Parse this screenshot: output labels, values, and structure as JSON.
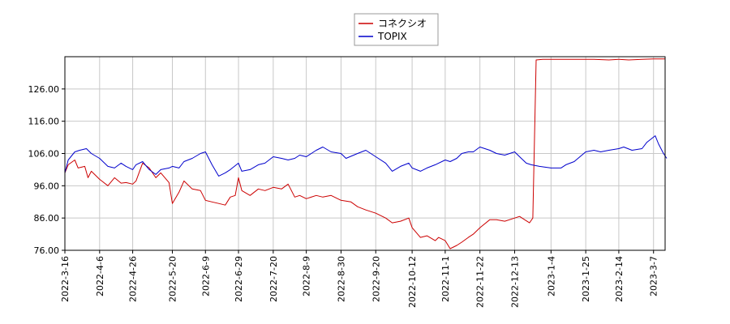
{
  "chart_data": {
    "type": "line",
    "title": "",
    "xlabel": "",
    "ylabel": "",
    "legend_position": "top-center",
    "grid": true,
    "ylim": [
      76.0,
      136.0
    ],
    "y_ticks": [
      "76.00",
      "86.00",
      "96.00",
      "106.00",
      "116.00",
      "126.00"
    ],
    "x_ticks": [
      "2022-3-16",
      "2022-4-6",
      "2022-4-26",
      "2022-5-20",
      "2022-6-9",
      "2022-6-29",
      "2022-7-20",
      "2022-8-9",
      "2022-8-30",
      "2022-9-20",
      "2022-10-12",
      "2022-11-1",
      "2022-11-22",
      "2022-12-13",
      "2023-1-4",
      "2023-1-25",
      "2023-2-14",
      "2023-3-7"
    ],
    "series": [
      {
        "name": "コネクシオ",
        "color": "#cc0000",
        "points": [
          [
            "2022-3-16",
            100.0
          ],
          [
            "2022-3-18",
            102.5
          ],
          [
            "2022-3-22",
            104.0
          ],
          [
            "2022-3-24",
            101.5
          ],
          [
            "2022-3-28",
            102.0
          ],
          [
            "2022-3-30",
            98.5
          ],
          [
            "2022-4-1",
            100.5
          ],
          [
            "2022-4-6",
            98.0
          ],
          [
            "2022-4-11",
            96.0
          ],
          [
            "2022-4-15",
            98.5
          ],
          [
            "2022-4-19",
            96.8
          ],
          [
            "2022-4-22",
            97.0
          ],
          [
            "2022-4-26",
            96.5
          ],
          [
            "2022-4-28",
            97.5
          ],
          [
            "2022-5-2",
            103.0
          ],
          [
            "2022-5-6",
            101.5
          ],
          [
            "2022-5-10",
            98.5
          ],
          [
            "2022-5-13",
            100.0
          ],
          [
            "2022-5-18",
            97.0
          ],
          [
            "2022-5-20",
            90.5
          ],
          [
            "2022-5-24",
            94.0
          ],
          [
            "2022-5-27",
            97.5
          ],
          [
            "2022-6-1",
            95.0
          ],
          [
            "2022-6-6",
            94.5
          ],
          [
            "2022-6-9",
            91.5
          ],
          [
            "2022-6-13",
            91.0
          ],
          [
            "2022-6-17",
            90.5
          ],
          [
            "2022-6-21",
            90.0
          ],
          [
            "2022-6-24",
            92.5
          ],
          [
            "2022-6-27",
            93.0
          ],
          [
            "2022-6-29",
            98.5
          ],
          [
            "2022-7-1",
            94.5
          ],
          [
            "2022-7-6",
            93.0
          ],
          [
            "2022-7-11",
            95.0
          ],
          [
            "2022-7-15",
            94.5
          ],
          [
            "2022-7-20",
            95.5
          ],
          [
            "2022-7-25",
            95.0
          ],
          [
            "2022-7-29",
            96.5
          ],
          [
            "2022-8-2",
            92.5
          ],
          [
            "2022-8-5",
            93.0
          ],
          [
            "2022-8-9",
            92.0
          ],
          [
            "2022-8-15",
            93.0
          ],
          [
            "2022-8-19",
            92.5
          ],
          [
            "2022-8-24",
            93.0
          ],
          [
            "2022-8-30",
            91.5
          ],
          [
            "2022-9-5",
            91.0
          ],
          [
            "2022-9-9",
            89.5
          ],
          [
            "2022-9-14",
            88.5
          ],
          [
            "2022-9-20",
            87.5
          ],
          [
            "2022-9-26",
            86.0
          ],
          [
            "2022-9-30",
            84.5
          ],
          [
            "2022-10-5",
            85.0
          ],
          [
            "2022-10-10",
            86.0
          ],
          [
            "2022-10-12",
            83.0
          ],
          [
            "2022-10-17",
            80.0
          ],
          [
            "2022-10-21",
            80.5
          ],
          [
            "2022-10-26",
            79.0
          ],
          [
            "2022-10-28",
            80.0
          ],
          [
            "2022-11-1",
            79.0
          ],
          [
            "2022-11-4",
            76.5
          ],
          [
            "2022-11-8",
            77.5
          ],
          [
            "2022-11-11",
            78.5
          ],
          [
            "2022-11-15",
            80.0
          ],
          [
            "2022-11-18",
            81.0
          ],
          [
            "2022-11-22",
            83.0
          ],
          [
            "2022-11-28",
            85.5
          ],
          [
            "2022-12-2",
            85.5
          ],
          [
            "2022-12-7",
            85.0
          ],
          [
            "2022-12-13",
            86.0
          ],
          [
            "2022-12-16",
            86.5
          ],
          [
            "2022-12-19",
            85.5
          ],
          [
            "2022-12-22",
            84.5
          ],
          [
            "2022-12-24",
            86.0
          ],
          [
            "2022-12-26",
            135.0
          ],
          [
            "2022-12-30",
            135.2
          ],
          [
            "2023-1-10",
            135.2
          ],
          [
            "2023-1-20",
            135.2
          ],
          [
            "2023-1-30",
            135.2
          ],
          [
            "2023-2-8",
            135.0
          ],
          [
            "2023-2-14",
            135.2
          ],
          [
            "2023-2-20",
            135.0
          ],
          [
            "2023-2-28",
            135.2
          ],
          [
            "2023-3-7",
            135.3
          ],
          [
            "2023-3-14",
            135.3
          ]
        ]
      },
      {
        "name": "TOPIX",
        "color": "#0000cc",
        "points": [
          [
            "2022-3-16",
            100.0
          ],
          [
            "2022-3-18",
            104.0
          ],
          [
            "2022-3-22",
            106.5
          ],
          [
            "2022-3-25",
            107.0
          ],
          [
            "2022-3-29",
            107.5
          ],
          [
            "2022-4-1",
            106.0
          ],
          [
            "2022-4-6",
            104.5
          ],
          [
            "2022-4-11",
            102.0
          ],
          [
            "2022-4-15",
            101.5
          ],
          [
            "2022-4-19",
            103.0
          ],
          [
            "2022-4-22",
            102.0
          ],
          [
            "2022-4-26",
            101.0
          ],
          [
            "2022-4-28",
            102.5
          ],
          [
            "2022-5-2",
            103.5
          ],
          [
            "2022-5-6",
            101.0
          ],
          [
            "2022-5-10",
            99.5
          ],
          [
            "2022-5-13",
            101.0
          ],
          [
            "2022-5-18",
            101.5
          ],
          [
            "2022-5-20",
            102.0
          ],
          [
            "2022-5-24",
            101.5
          ],
          [
            "2022-5-27",
            103.5
          ],
          [
            "2022-6-1",
            104.5
          ],
          [
            "2022-6-6",
            106.0
          ],
          [
            "2022-6-9",
            106.5
          ],
          [
            "2022-6-13",
            102.5
          ],
          [
            "2022-6-17",
            99.0
          ],
          [
            "2022-6-21",
            100.0
          ],
          [
            "2022-6-24",
            101.0
          ],
          [
            "2022-6-29",
            103.0
          ],
          [
            "2022-7-1",
            100.5
          ],
          [
            "2022-7-6",
            101.0
          ],
          [
            "2022-7-11",
            102.5
          ],
          [
            "2022-7-15",
            103.0
          ],
          [
            "2022-7-20",
            105.0
          ],
          [
            "2022-7-25",
            104.5
          ],
          [
            "2022-7-29",
            104.0
          ],
          [
            "2022-8-2",
            104.5
          ],
          [
            "2022-8-5",
            105.5
          ],
          [
            "2022-8-9",
            105.0
          ],
          [
            "2022-8-15",
            107.0
          ],
          [
            "2022-8-19",
            108.0
          ],
          [
            "2022-8-24",
            106.5
          ],
          [
            "2022-8-30",
            106.0
          ],
          [
            "2022-9-2",
            104.5
          ],
          [
            "2022-9-9",
            106.0
          ],
          [
            "2022-9-14",
            107.0
          ],
          [
            "2022-9-20",
            105.0
          ],
          [
            "2022-9-26",
            103.0
          ],
          [
            "2022-9-30",
            100.5
          ],
          [
            "2022-10-5",
            102.0
          ],
          [
            "2022-10-10",
            103.0
          ],
          [
            "2022-10-12",
            101.5
          ],
          [
            "2022-10-17",
            100.5
          ],
          [
            "2022-10-21",
            101.5
          ],
          [
            "2022-10-26",
            102.5
          ],
          [
            "2022-11-1",
            104.0
          ],
          [
            "2022-11-4",
            103.5
          ],
          [
            "2022-11-8",
            104.5
          ],
          [
            "2022-11-11",
            106.0
          ],
          [
            "2022-11-15",
            106.5
          ],
          [
            "2022-11-18",
            106.5
          ],
          [
            "2022-11-22",
            108.0
          ],
          [
            "2022-11-28",
            107.0
          ],
          [
            "2022-12-2",
            106.0
          ],
          [
            "2022-12-7",
            105.5
          ],
          [
            "2022-12-13",
            106.5
          ],
          [
            "2022-12-16",
            105.0
          ],
          [
            "2022-12-20",
            103.0
          ],
          [
            "2022-12-23",
            102.5
          ],
          [
            "2022-12-28",
            102.0
          ],
          [
            "2023-1-4",
            101.5
          ],
          [
            "2023-1-10",
            101.5
          ],
          [
            "2023-1-13",
            102.5
          ],
          [
            "2023-1-18",
            103.5
          ],
          [
            "2023-1-25",
            106.5
          ],
          [
            "2023-1-30",
            107.0
          ],
          [
            "2023-2-3",
            106.5
          ],
          [
            "2023-2-8",
            107.0
          ],
          [
            "2023-2-14",
            107.5
          ],
          [
            "2023-2-17",
            108.0
          ],
          [
            "2023-2-22",
            107.0
          ],
          [
            "2023-2-28",
            107.5
          ],
          [
            "2023-3-3",
            109.5
          ],
          [
            "2023-3-8",
            111.5
          ],
          [
            "2023-3-10",
            109.0
          ],
          [
            "2023-3-13",
            106.0
          ],
          [
            "2023-3-15",
            104.5
          ]
        ]
      }
    ]
  }
}
